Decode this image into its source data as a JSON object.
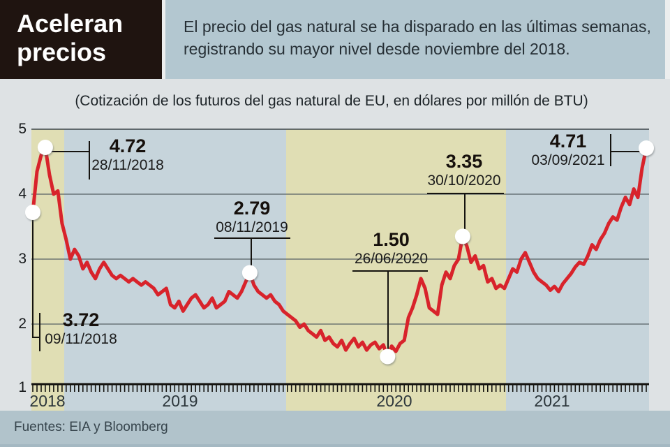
{
  "header": {
    "title": "Aceleran precios",
    "description": "El precio del gas natural se ha disparado en las últimas semanas, registrando su mayor nivel desde noviembre del 2018."
  },
  "subtitle": "(Cotización de los futuros del gas natural de EU, en dólares por millón de BTU)",
  "source": "Fuentes: EIA y Bloomberg",
  "chart_data": {
    "type": "line",
    "title": "Cotización de los futuros del gas natural de EU",
    "ylabel": "dólares por millón de BTU",
    "ylim": [
      1,
      5
    ],
    "y_ticks": [
      1,
      2,
      3,
      4,
      5
    ],
    "x_years": [
      "2018",
      "2019",
      "2020",
      "2021"
    ],
    "x_start_date": "09/11/2018",
    "x_end_date": "03/09/2021",
    "x_frequency": "weekly",
    "grid": true,
    "series": [
      {
        "name": "Futuros del gas natural de EU (USD por millón de BTU)",
        "values": [
          3.72,
          4.35,
          4.6,
          4.72,
          4.3,
          4.0,
          4.05,
          3.55,
          3.3,
          3.0,
          3.15,
          3.05,
          2.85,
          2.95,
          2.8,
          2.7,
          2.85,
          2.95,
          2.85,
          2.75,
          2.7,
          2.75,
          2.7,
          2.65,
          2.7,
          2.65,
          2.6,
          2.65,
          2.6,
          2.55,
          2.45,
          2.5,
          2.55,
          2.3,
          2.25,
          2.35,
          2.2,
          2.3,
          2.4,
          2.45,
          2.35,
          2.25,
          2.3,
          2.4,
          2.25,
          2.3,
          2.35,
          2.5,
          2.45,
          2.4,
          2.5,
          2.65,
          2.79,
          2.6,
          2.5,
          2.45,
          2.4,
          2.45,
          2.35,
          2.3,
          2.2,
          2.15,
          2.1,
          2.05,
          1.95,
          2.0,
          1.9,
          1.85,
          1.8,
          1.9,
          1.75,
          1.8,
          1.7,
          1.65,
          1.75,
          1.6,
          1.7,
          1.78,
          1.65,
          1.72,
          1.6,
          1.68,
          1.72,
          1.62,
          1.68,
          1.5,
          1.66,
          1.58,
          1.7,
          1.75,
          2.1,
          2.25,
          2.45,
          2.7,
          2.55,
          2.25,
          2.2,
          2.15,
          2.6,
          2.8,
          2.7,
          2.9,
          3.0,
          3.35,
          3.2,
          2.95,
          3.05,
          2.85,
          2.9,
          2.65,
          2.7,
          2.55,
          2.6,
          2.55,
          2.7,
          2.85,
          2.8,
          3.0,
          3.1,
          2.95,
          2.8,
          2.7,
          2.65,
          2.6,
          2.52,
          2.58,
          2.5,
          2.62,
          2.7,
          2.78,
          2.88,
          2.95,
          2.92,
          3.05,
          3.22,
          3.15,
          3.3,
          3.4,
          3.55,
          3.65,
          3.6,
          3.8,
          3.95,
          3.84,
          4.08,
          3.95,
          4.4,
          4.71
        ]
      }
    ],
    "annotations": [
      {
        "value": "4.72",
        "date": "28/11/2018",
        "week": 3
      },
      {
        "value": "3.72",
        "date": "09/11/2018",
        "week": 0
      },
      {
        "value": "2.79",
        "date": "08/11/2019",
        "week": 52
      },
      {
        "value": "1.50",
        "date": "26/06/2020",
        "week": 85
      },
      {
        "value": "3.35",
        "date": "30/10/2020",
        "week": 103
      },
      {
        "value": "4.71",
        "date": "03/09/2021",
        "week": 147
      }
    ],
    "colors": {
      "line": "#d8232b",
      "band_yellow": "#e0deb4",
      "band_blue": "#c6d4db",
      "background": "#dee2e4",
      "header_box": "#b3c7d0",
      "title_box": "#1f1410",
      "footer": "#b1c3cb"
    },
    "legend_position": "none"
  }
}
